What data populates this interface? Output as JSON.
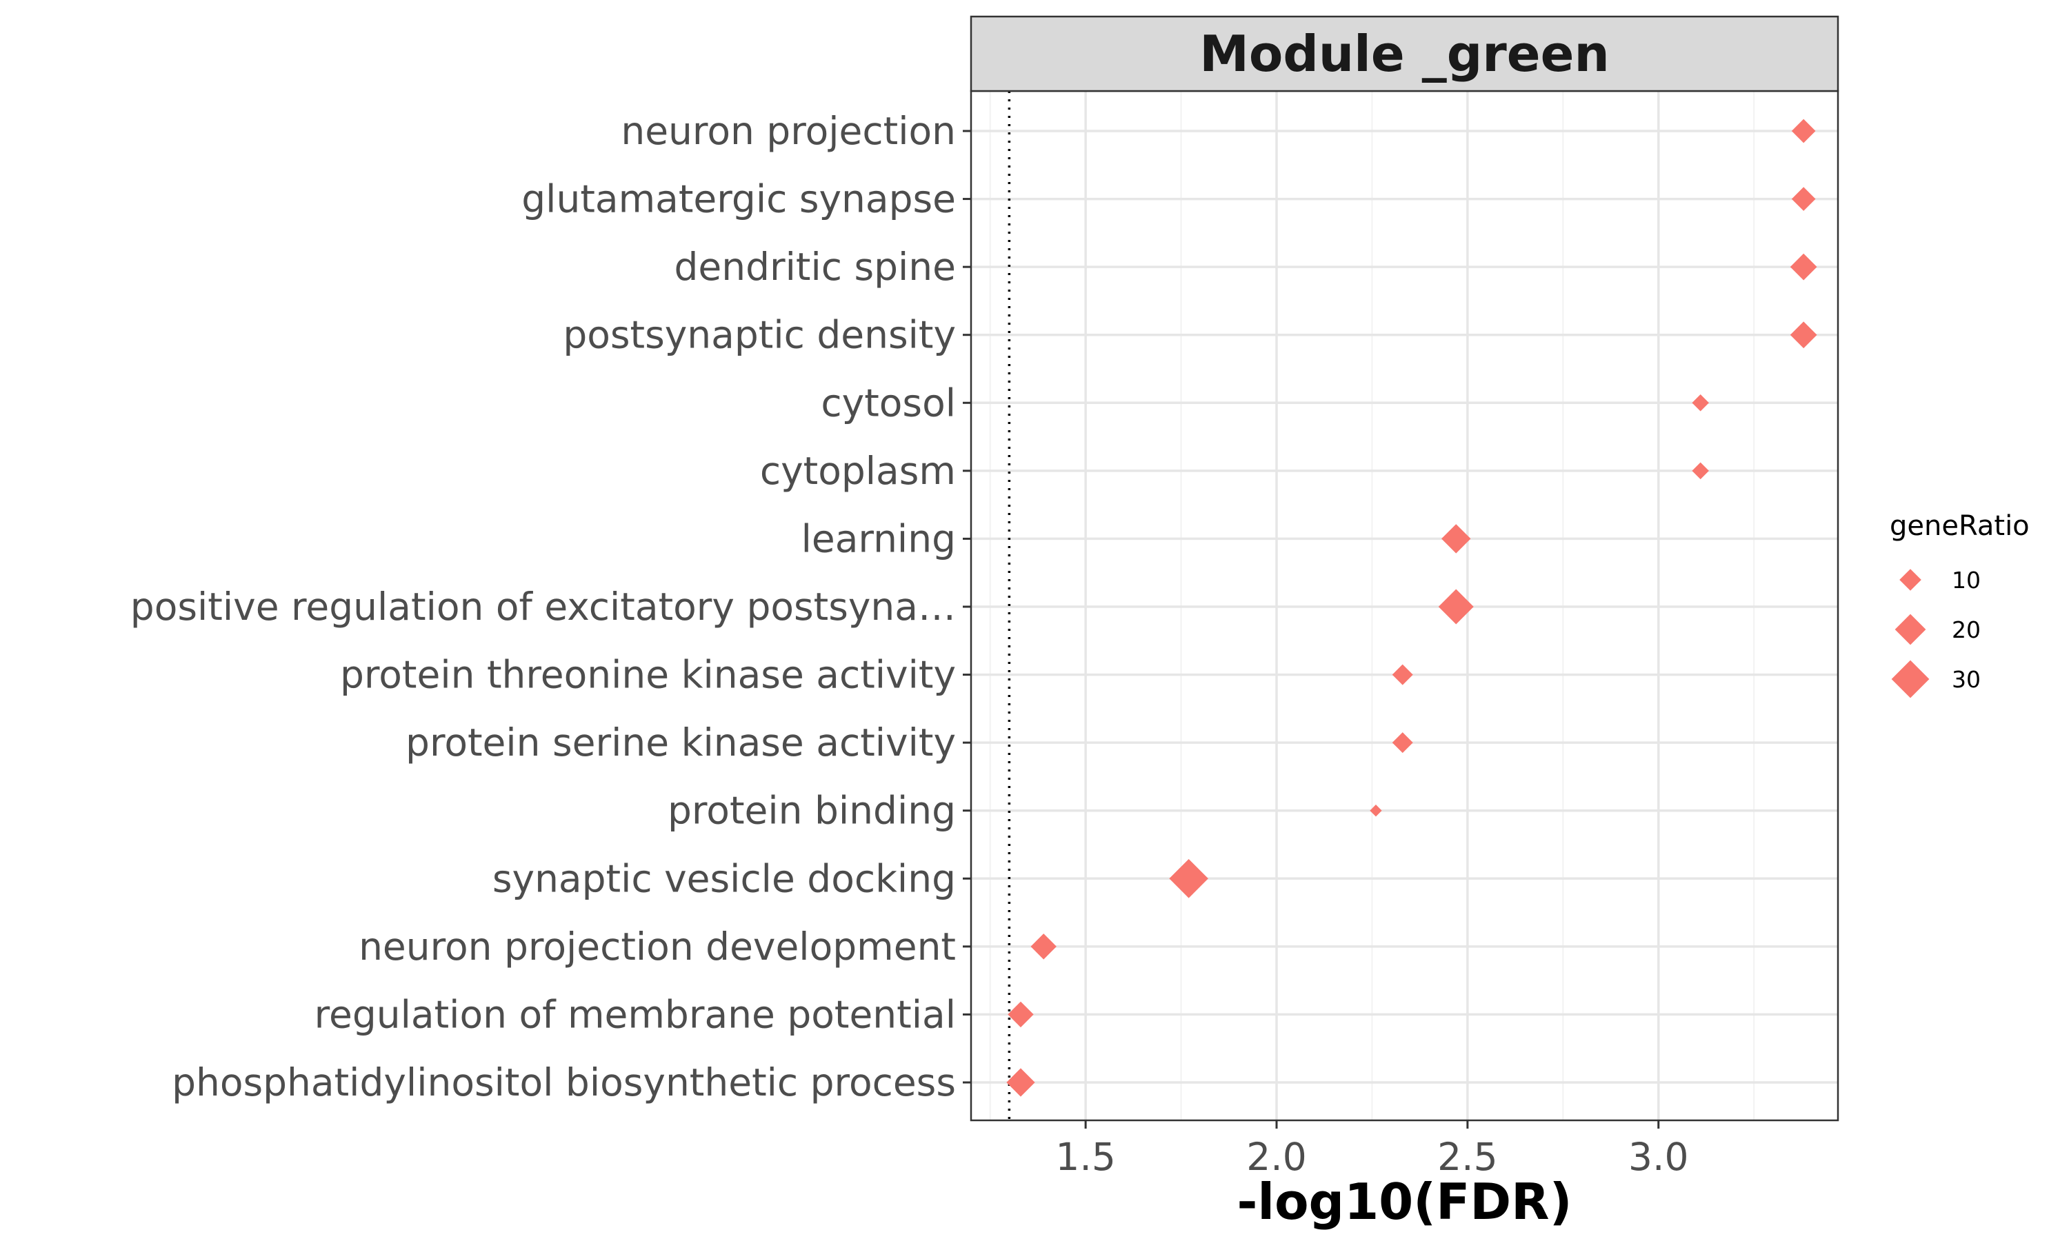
{
  "chart_data": {
    "type": "scatter",
    "title": "Module _green",
    "xlabel": "-log10(FDR)",
    "ylabel": "",
    "xlim": [
      1.2,
      3.47
    ],
    "xticks": [
      "1.5",
      "2.0",
      "2.5",
      "3.0"
    ],
    "xtick_values": [
      1.5,
      2.0,
      2.5,
      3.0
    ],
    "threshold_line": 1.3,
    "grid": true,
    "marker": "diamond",
    "color": "#F8766D",
    "categories": [
      "neuron projection",
      "glutamatergic synapse",
      "dendritic spine",
      "postsynaptic density",
      "cytosol",
      "cytoplasm",
      "learning",
      "positive regulation of excitatory postsyna…",
      "protein threonine kinase activity",
      "protein serine kinase activity",
      "protein binding",
      "synaptic vesicle docking",
      "neuron projection development",
      "regulation of membrane potential",
      "phosphatidylinositol biosynthetic process"
    ],
    "values": [
      3.38,
      3.38,
      3.38,
      3.38,
      3.11,
      3.11,
      2.47,
      2.47,
      2.33,
      2.33,
      2.26,
      1.77,
      1.39,
      1.33,
      1.33
    ],
    "geneRatio": [
      12,
      12,
      15,
      15,
      6,
      6,
      18,
      26,
      9,
      9,
      3,
      32,
      14,
      14,
      17
    ],
    "legend": {
      "title": "geneRatio",
      "position": "right",
      "entries": [
        {
          "label": "10",
          "value": 10
        },
        {
          "label": "20",
          "value": 20
        },
        {
          "label": "30",
          "value": 30
        }
      ]
    }
  }
}
